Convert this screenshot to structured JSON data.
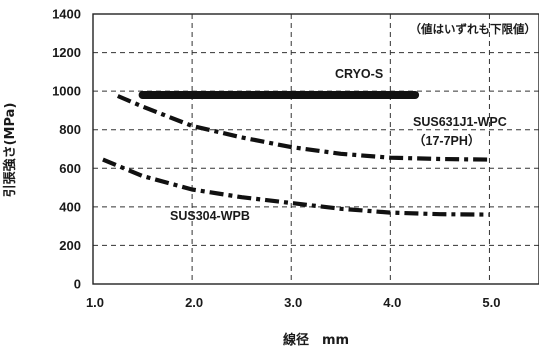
{
  "chart_data": {
    "type": "line",
    "note": "（値はいずれも下限値）",
    "xlabel": "線径　mm",
    "ylabel": "引張強さ(MPa)",
    "xlim": [
      1.0,
      5.5
    ],
    "ylim": [
      0,
      1400
    ],
    "x_ticks": [
      "1.0",
      "2.0",
      "3.0",
      "4.0",
      "5.0"
    ],
    "y_ticks": [
      "0",
      "200",
      "400",
      "600",
      "800",
      "1000",
      "1200",
      "1400"
    ],
    "x_tick_values": [
      1.0,
      2.0,
      3.0,
      4.0,
      5.0
    ],
    "y_tick_values": [
      0,
      200,
      400,
      600,
      800,
      1000,
      1200,
      1400
    ],
    "grid": true,
    "series": [
      {
        "name": "CRYO-S",
        "color": "#111111",
        "style": "solid-thick",
        "points": [
          [
            1.5,
            980
          ],
          [
            4.25,
            980
          ]
        ]
      },
      {
        "name": "SUS631J1-WPC",
        "label_lines": [
          "SUS631J1-WPC",
          "（17-7PH）"
        ],
        "color": "#111111",
        "style": "dash-dot",
        "points": [
          [
            1.25,
            975
          ],
          [
            1.5,
            920
          ],
          [
            2.0,
            820
          ],
          [
            2.5,
            760
          ],
          [
            3.0,
            710
          ],
          [
            3.5,
            675
          ],
          [
            4.0,
            655
          ],
          [
            4.5,
            648
          ],
          [
            5.0,
            645
          ]
        ]
      },
      {
        "name": "SUS304-WPB",
        "color": "#111111",
        "style": "dash-dot",
        "points": [
          [
            1.1,
            645
          ],
          [
            1.5,
            560
          ],
          [
            2.0,
            490
          ],
          [
            2.5,
            450
          ],
          [
            3.0,
            420
          ],
          [
            3.5,
            390
          ],
          [
            4.0,
            370
          ],
          [
            4.5,
            362
          ],
          [
            5.0,
            360
          ]
        ]
      }
    ]
  }
}
